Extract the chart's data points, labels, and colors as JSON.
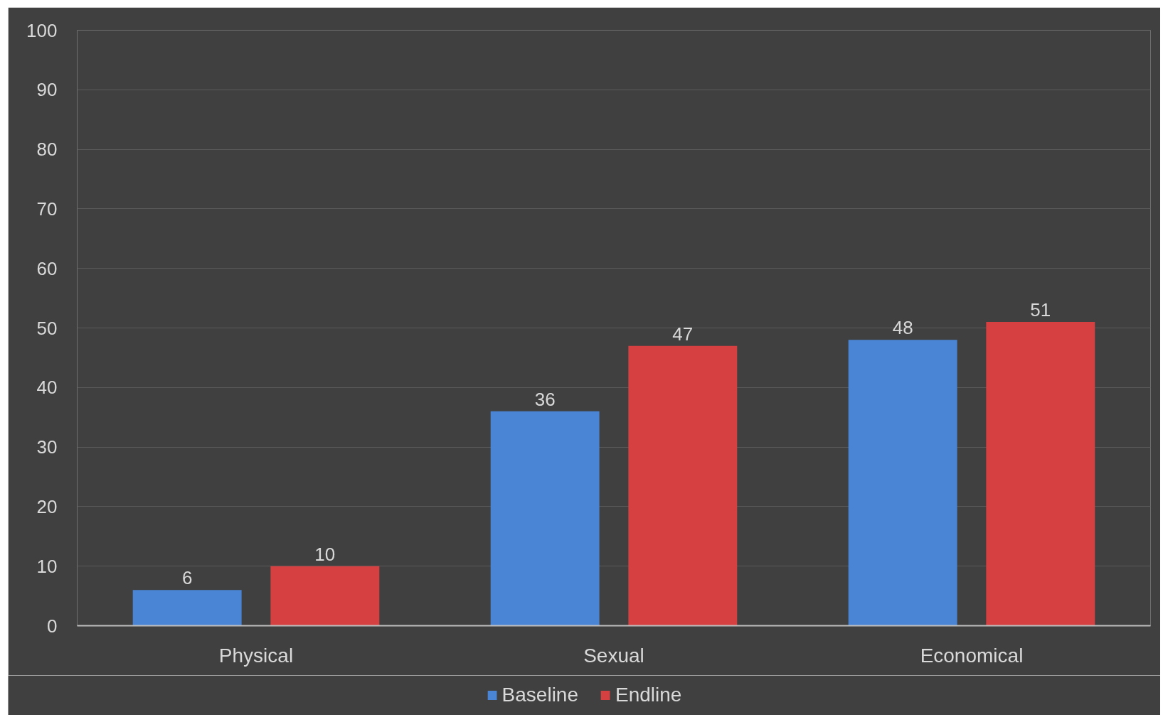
{
  "chart_data": {
    "type": "bar",
    "categories": [
      "Physical",
      "Sexual",
      "Economical"
    ],
    "series": [
      {
        "name": "Baseline",
        "color": "#4a84d4",
        "values": [
          6,
          36,
          48
        ]
      },
      {
        "name": "Endline",
        "color": "#d64040",
        "values": [
          10,
          47,
          51
        ]
      }
    ],
    "ylim": [
      0,
      100
    ],
    "yticks": [
      0,
      10,
      20,
      30,
      40,
      50,
      60,
      70,
      80,
      90,
      100
    ],
    "grid": "y",
    "legend": "bottom",
    "data_labels": true
  }
}
